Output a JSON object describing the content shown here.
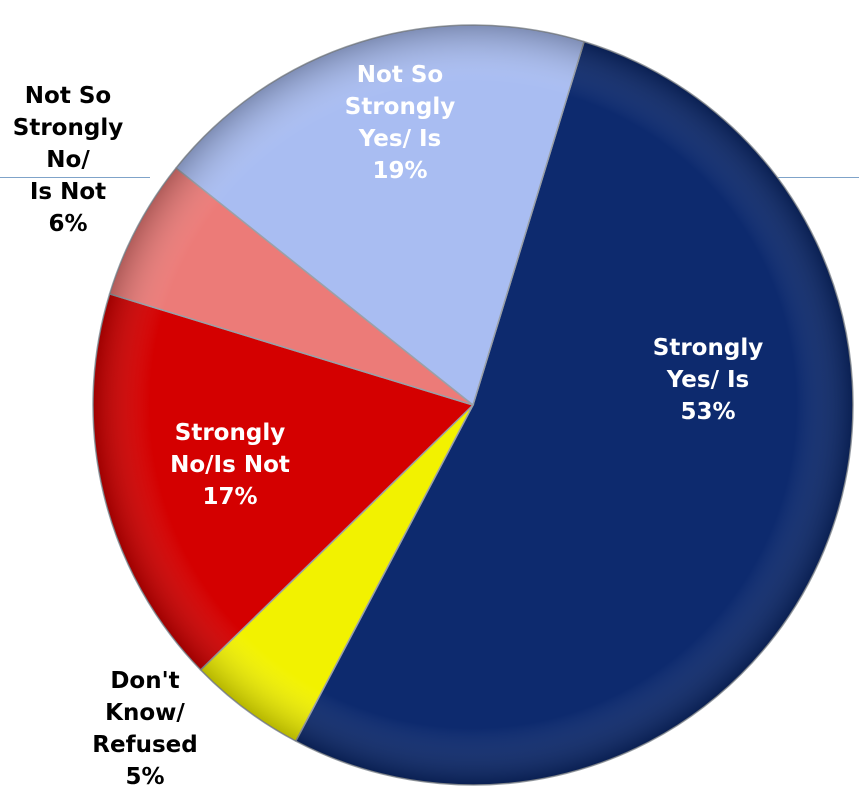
{
  "chart_data": {
    "type": "pie",
    "title": "",
    "slices": [
      {
        "label_lines": [
          "Strongly",
          "Yes/ Is"
        ],
        "value": 53,
        "value_label": "53%",
        "color": "#0d2a6e",
        "label_color": "#ffffff"
      },
      {
        "label_lines": [
          "Don't",
          "Know/",
          "Refused"
        ],
        "value": 5,
        "value_label": "5%",
        "color": "#f2f200",
        "label_color": "#000000"
      },
      {
        "label_lines": [
          "Strongly",
          "No/Is Not"
        ],
        "value": 17,
        "value_label": "17%",
        "color": "#d40000",
        "label_color": "#ffffff"
      },
      {
        "label_lines": [
          "Not So",
          "Strongly",
          "No/",
          "Is Not"
        ],
        "value": 6,
        "value_label": "6%",
        "color": "#ec7b78",
        "label_color": "#000000"
      },
      {
        "label_lines": [
          "Not So",
          "Strongly",
          "Yes/ Is"
        ],
        "value": 19,
        "value_label": "19%",
        "color": "#a9bdf2",
        "label_color": "#ffffff"
      }
    ],
    "start_angle_deg": 17,
    "direction": "clockwise",
    "legend": "none"
  }
}
